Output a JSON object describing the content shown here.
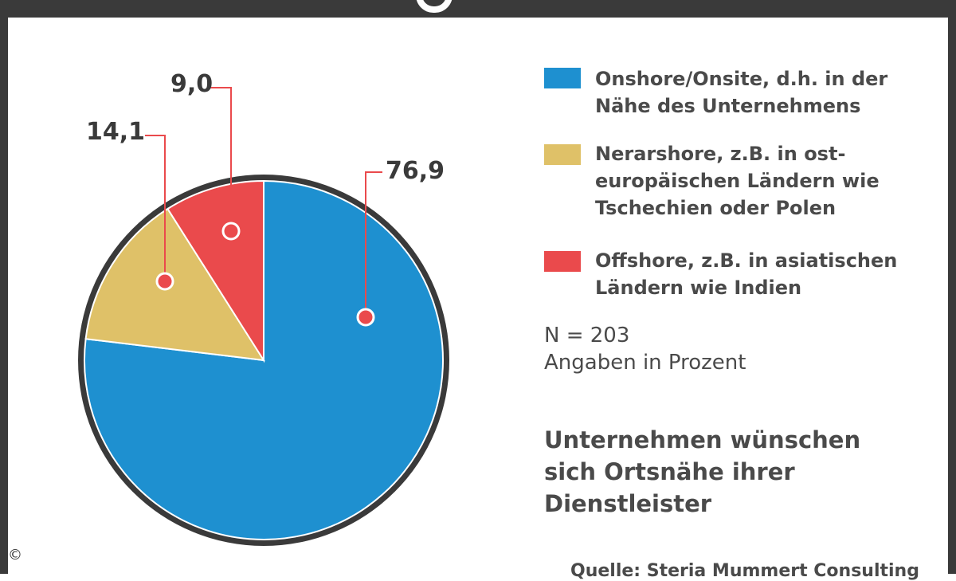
{
  "chart_data": {
    "type": "pie",
    "categories": [
      "Onshore/Onsite, d.h. in der Nähe des Unternehmens",
      "Nerarshore, z.B. in ost-europäischen Ländern wie Tschechien oder Polen",
      "Offshore, z.B. in asiatischen Ländern wie Indien"
    ],
    "values": [
      76.9,
      14.1,
      9.0
    ],
    "value_labels": [
      "76,9",
      "14,1",
      "9,0"
    ],
    "colors": [
      "#1e90d0",
      "#dfc168",
      "#ea4a4c"
    ],
    "legend_placement": "right",
    "unit": "Prozent"
  },
  "legend": [
    {
      "lines": [
        "Onshore/Onsite, d.h. in der",
        "Nähe des Unternehmens"
      ],
      "color": "#1e90d0"
    },
    {
      "lines": [
        "Nerarshore, z.B. in ost-",
        "europäischen Ländern wie",
        "Tschechien oder Polen"
      ],
      "color": "#dfc168"
    },
    {
      "lines": [
        "Offshore, z.B. in asiatischen",
        "Ländern wie Indien"
      ],
      "color": "#ea4a4c"
    }
  ],
  "notes": {
    "n": "N = 203",
    "unit_note": "Angaben in Prozent"
  },
  "headline": [
    "Unternehmen wünschen",
    "sich Ortsnähe ihrer",
    "Dienstleister"
  ],
  "source": "Quelle: Steria Mummert Consulting",
  "copyright": "©",
  "style": {
    "frame_color": "#3a3a3a",
    "callout_color": "#ea4a4c",
    "label_color": "#3a3a3a"
  }
}
